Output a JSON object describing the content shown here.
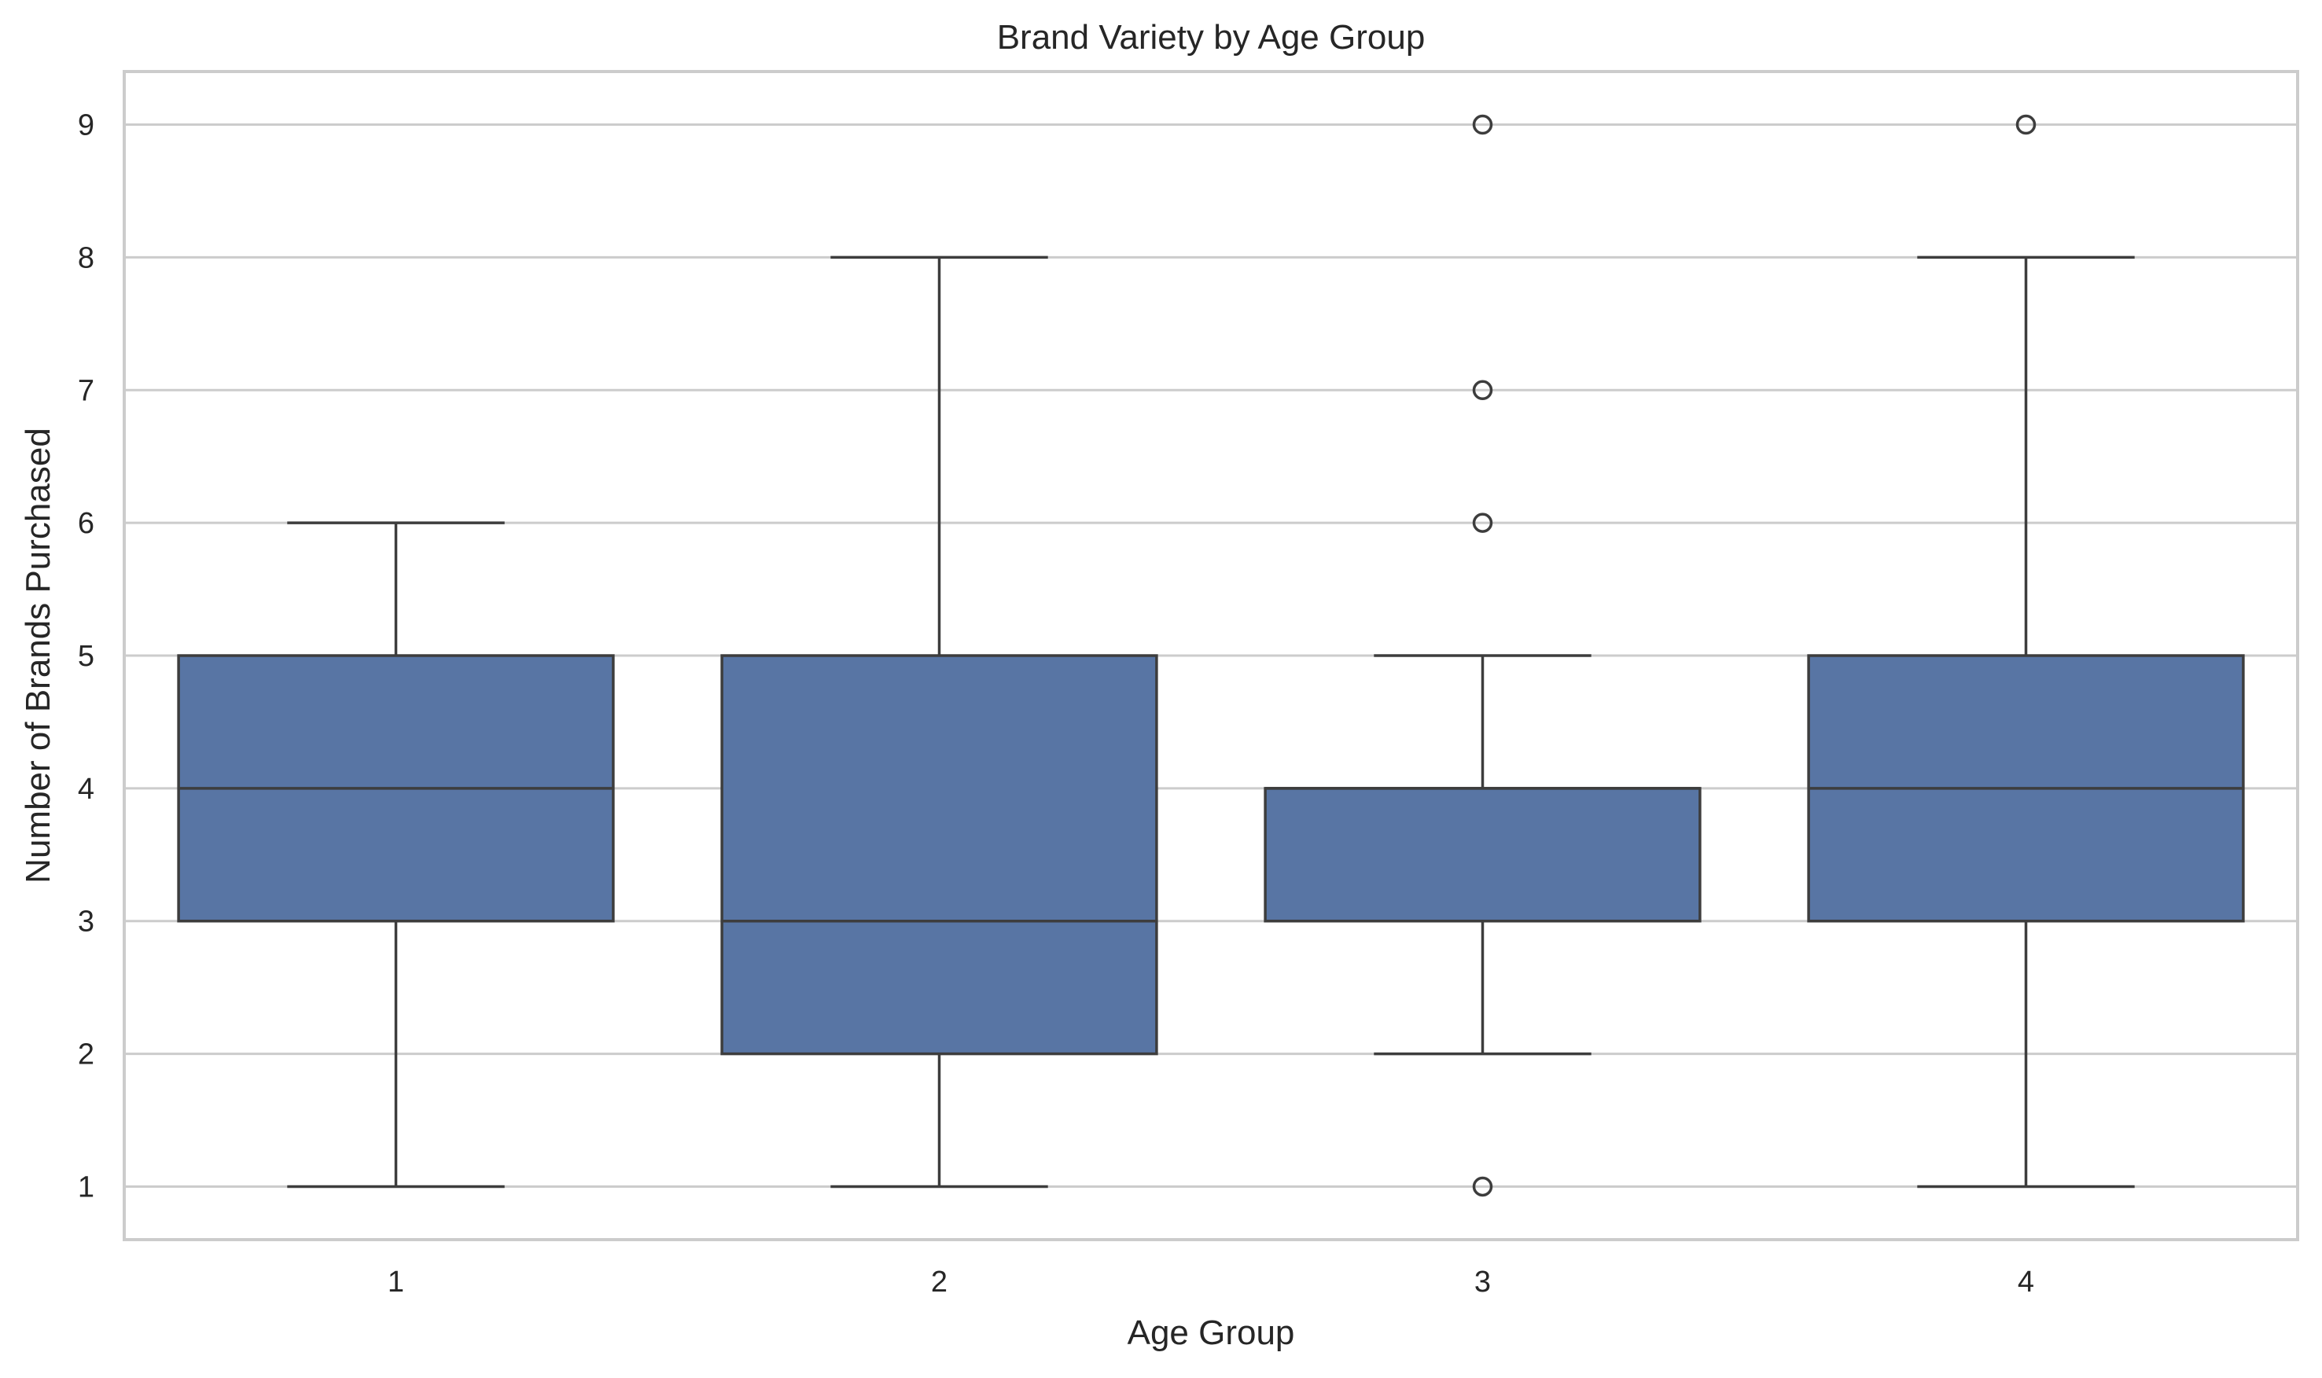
{
  "chart_data": {
    "type": "box",
    "title": "Brand Variety by Age Group",
    "xlabel": "Age Group",
    "ylabel": "Number of Brands Purchased",
    "categories": [
      "1",
      "2",
      "3",
      "4"
    ],
    "yticks": [
      1,
      2,
      3,
      4,
      5,
      6,
      7,
      8,
      9
    ],
    "ylim": [
      0.6,
      9.4
    ],
    "grid": true,
    "box_color": "#5875a4",
    "edge_color": "#3d3d3d",
    "boxes": [
      {
        "category": "1",
        "whisker_low": 1,
        "q1": 3,
        "median": 4,
        "q3": 5,
        "whisker_high": 6,
        "outliers": []
      },
      {
        "category": "2",
        "whisker_low": 1,
        "q1": 2,
        "median": 3,
        "q3": 5,
        "whisker_high": 8,
        "outliers": []
      },
      {
        "category": "3",
        "whisker_low": 2,
        "q1": 3,
        "median": 4,
        "q3": 4,
        "whisker_high": 5,
        "outliers": [
          1,
          6,
          7,
          9
        ]
      },
      {
        "category": "4",
        "whisker_low": 1,
        "q1": 3,
        "median": 4,
        "q3": 5,
        "whisker_high": 8,
        "outliers": [
          9
        ]
      }
    ]
  }
}
